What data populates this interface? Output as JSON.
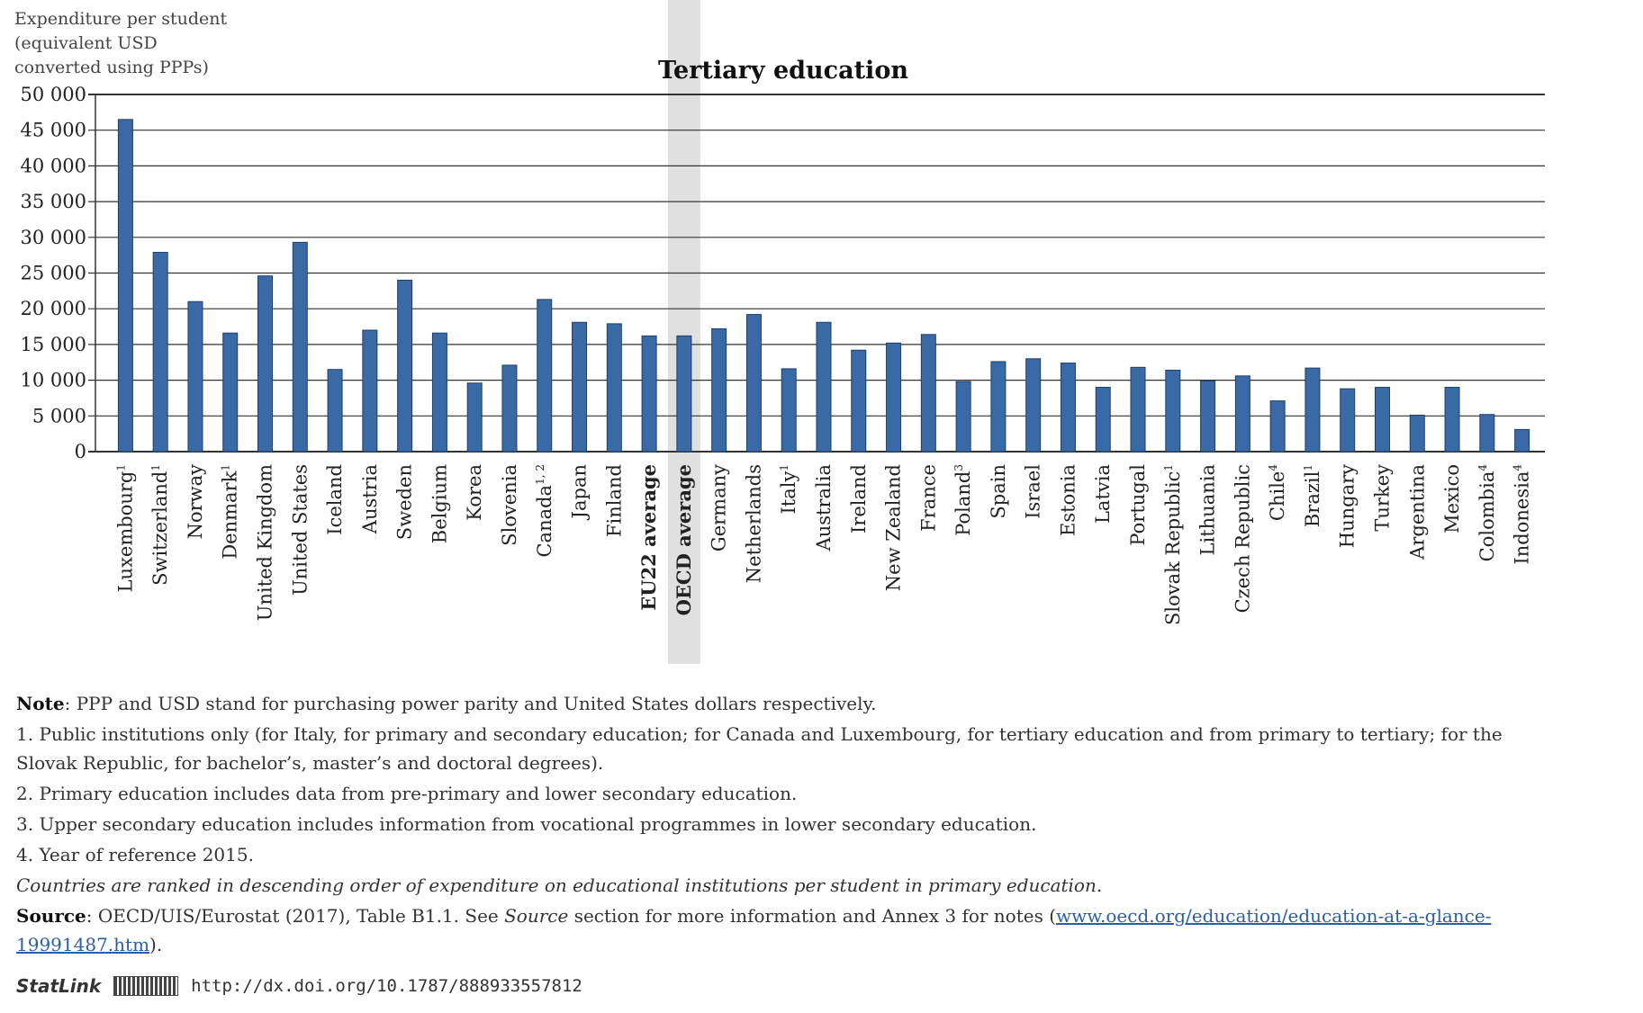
{
  "chart_data": {
    "type": "bar",
    "title": "Tertiary education",
    "ylabel": "Expenditure per student (equivalent USD converted using PPPs)",
    "ylabel_lines": [
      "Expenditure per student",
      "(equivalent USD",
      "converted using PPPs)"
    ],
    "ylim": [
      0,
      50000
    ],
    "yticks": [
      0,
      5000,
      10000,
      15000,
      20000,
      25000,
      30000,
      35000,
      40000,
      45000,
      50000
    ],
    "ytick_labels": [
      "0",
      "5 000",
      "10 000",
      "15 000",
      "20 000",
      "25 000",
      "30 000",
      "35 000",
      "40 000",
      "45 000",
      "50 000"
    ],
    "grid": true,
    "bar_color": "#3a6aa6",
    "highlight_color": "#e0e0e0",
    "categories": [
      {
        "name": "Luxembourg",
        "sup": "1",
        "value": 46500
      },
      {
        "name": "Switzerland",
        "sup": "1",
        "value": 27900
      },
      {
        "name": "Norway",
        "sup": "",
        "value": 21000
      },
      {
        "name": "Denmark",
        "sup": "1",
        "value": 16600
      },
      {
        "name": "United Kingdom",
        "sup": "",
        "value": 24600
      },
      {
        "name": "United States",
        "sup": "",
        "value": 29300
      },
      {
        "name": "Iceland",
        "sup": "",
        "value": 11500
      },
      {
        "name": "Austria",
        "sup": "",
        "value": 17000
      },
      {
        "name": "Sweden",
        "sup": "",
        "value": 24000
      },
      {
        "name": "Belgium",
        "sup": "",
        "value": 16600
      },
      {
        "name": "Korea",
        "sup": "",
        "value": 9600
      },
      {
        "name": "Slovenia",
        "sup": "",
        "value": 12100
      },
      {
        "name": "Canada",
        "sup": "1, 2",
        "value": 21300
      },
      {
        "name": "Japan",
        "sup": "",
        "value": 18100
      },
      {
        "name": "Finland",
        "sup": "",
        "value": 17900
      },
      {
        "name": "EU22 average",
        "sup": "",
        "value": 16200,
        "bold": true
      },
      {
        "name": "OECD average",
        "sup": "",
        "value": 16200,
        "bold": true,
        "highlight": true
      },
      {
        "name": "Germany",
        "sup": "",
        "value": 17200
      },
      {
        "name": "Netherlands",
        "sup": "",
        "value": 19200
      },
      {
        "name": "Italy",
        "sup": "1",
        "value": 11600
      },
      {
        "name": "Australia",
        "sup": "",
        "value": 18100
      },
      {
        "name": "Ireland",
        "sup": "",
        "value": 14200
      },
      {
        "name": "New Zealand",
        "sup": "",
        "value": 15200
      },
      {
        "name": "France",
        "sup": "",
        "value": 16400
      },
      {
        "name": "Poland",
        "sup": "3",
        "value": 9800
      },
      {
        "name": "Spain",
        "sup": "",
        "value": 12600
      },
      {
        "name": "Israel",
        "sup": "",
        "value": 13000
      },
      {
        "name": "Estonia",
        "sup": "",
        "value": 12400
      },
      {
        "name": "Latvia",
        "sup": "",
        "value": 9000
      },
      {
        "name": "Portugal",
        "sup": "",
        "value": 11800
      },
      {
        "name": "Slovak Republic",
        "sup": "1",
        "value": 11400
      },
      {
        "name": "Lithuania",
        "sup": "",
        "value": 9900
      },
      {
        "name": "Czech Republic",
        "sup": "",
        "value": 10600
      },
      {
        "name": "Chile",
        "sup": "4",
        "value": 7100
      },
      {
        "name": "Brazil",
        "sup": "1",
        "value": 11700
      },
      {
        "name": "Hungary",
        "sup": "",
        "value": 8800
      },
      {
        "name": "Turkey",
        "sup": "",
        "value": 9000
      },
      {
        "name": "Argentina",
        "sup": "",
        "value": 5100
      },
      {
        "name": "Mexico",
        "sup": "",
        "value": 9000
      },
      {
        "name": "Colombia",
        "sup": "4",
        "value": 5200
      },
      {
        "name": "Indonesia",
        "sup": "4",
        "value": 3100
      }
    ]
  },
  "notes": {
    "note_label": "Note",
    "note_text": ": PPP and USD stand for purchasing power parity and United States dollars respectively.",
    "n1": "1. Public institutions only (for Italy, for primary and secondary education; for Canada and Luxembourg, for tertiary education and from primary to tertiary; for the Slovak Republic, for bachelor’s, master’s and doctoral degrees).",
    "n2": "2. Primary education includes data from pre-primary and lower secondary education.",
    "n3": "3. Upper secondary education includes information from vocational programmes in lower secondary education.",
    "n4": "4. Year of reference 2015.",
    "ranking": "Countries are ranked in descending order of expenditure on educational institutions per student in primary education.",
    "source_label": "Source",
    "source_text_1": ": OECD/UIS/Eurostat (2017), Table B1.1. See ",
    "source_italic": "Source",
    "source_text_2": " section for more information and Annex 3 for notes (",
    "source_link": "www.oecd.org/education/education-at-a-glance-19991487.htm",
    "source_text_3": ")."
  },
  "statlink": {
    "brand": "StatLink",
    "url": "http://dx.doi.org/10.1787/888933557812"
  }
}
